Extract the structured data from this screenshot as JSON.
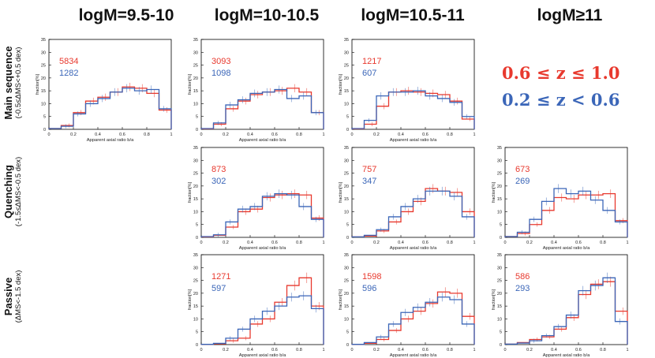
{
  "columns": [
    "logM=9.5-10",
    "logM=10-10.5",
    "logM=10.5-11",
    "logM≥11"
  ],
  "rows": [
    {
      "title": "Main sequence",
      "subtitle": "(-0.5≤ΔMS<+0.5 dex)"
    },
    {
      "title": "Quenching",
      "subtitle": "(-1.5≤ΔMS<-0.5 dex)"
    },
    {
      "title": "Passive",
      "subtitle": "(ΔMS<-1.5 dex)"
    }
  ],
  "legend": {
    "red": {
      "label": "0.6 ≤ z ≤ 1.0",
      "color": "#e8392e"
    },
    "blue": {
      "label": "0.2 ≤ z < 0.6",
      "color": "#3b66b8"
    }
  },
  "colors": {
    "red": "#e8392e",
    "blue": "#3b66b8"
  },
  "chart_data": [
    {
      "type": "bar",
      "row": "Main sequence",
      "column": "logM=9.5-10",
      "xlabel": "Apparent axial ratio b/a",
      "ylabel": "fraction[%]",
      "xlim": [
        0,
        1
      ],
      "ylim": [
        0,
        35
      ],
      "xticks": [
        "0",
        "0.2",
        "0.4",
        "0.6",
        "0.8",
        "1"
      ],
      "yticks": [
        "0",
        "5",
        "10",
        "15",
        "20",
        "25",
        "30",
        "35"
      ],
      "bin_edges": [
        0,
        0.1,
        0.2,
        0.3,
        0.4,
        0.5,
        0.6,
        0.7,
        0.8,
        0.9,
        1.0
      ],
      "series": [
        {
          "name": "0.6 ≤ z ≤ 1.0",
          "count": "5834",
          "values": [
            0.3,
            1.5,
            6.5,
            11,
            12.5,
            14.5,
            16.5,
            16,
            14,
            7.5
          ]
        },
        {
          "name": "0.2 ≤ z < 0.6",
          "count": "1282",
          "values": [
            0.3,
            1.2,
            6,
            10,
            12,
            14.5,
            16,
            15,
            15.5,
            8
          ]
        }
      ]
    },
    {
      "type": "bar",
      "row": "Main sequence",
      "column": "logM=10-10.5",
      "xlabel": "Apparent axial ratio b/a",
      "ylabel": "fraction[%]",
      "xlim": [
        0,
        1
      ],
      "ylim": [
        0,
        35
      ],
      "xticks": [
        "0",
        "0.2",
        "0.4",
        "0.6",
        "0.8",
        "1"
      ],
      "yticks": [
        "0",
        "5",
        "10",
        "15",
        "20",
        "25",
        "30",
        "35"
      ],
      "bin_edges": [
        0,
        0.1,
        0.2,
        0.3,
        0.4,
        0.5,
        0.6,
        0.7,
        0.8,
        0.9,
        1.0
      ],
      "series": [
        {
          "name": "0.6 ≤ z ≤ 1.0",
          "count": "3093",
          "values": [
            0.2,
            2,
            8,
            11,
            13.5,
            14.5,
            15,
            16,
            14.5,
            6.5
          ]
        },
        {
          "name": "0.2 ≤ z < 0.6",
          "count": "1098",
          "values": [
            0.3,
            2.5,
            9.5,
            11.5,
            14,
            14.5,
            15.5,
            12,
            13,
            6.5
          ]
        }
      ]
    },
    {
      "type": "bar",
      "row": "Main sequence",
      "column": "logM=10.5-11",
      "xlabel": "Apparent axial ratio b/a",
      "ylabel": "fraction[%]",
      "xlim": [
        0,
        1
      ],
      "ylim": [
        0,
        35
      ],
      "xticks": [
        "0",
        "0.2",
        "0.4",
        "0.6",
        "0.8",
        "1"
      ],
      "yticks": [
        "0",
        "5",
        "10",
        "15",
        "20",
        "25",
        "30",
        "35"
      ],
      "bin_edges": [
        0,
        0.1,
        0.2,
        0.3,
        0.4,
        0.5,
        0.6,
        0.7,
        0.8,
        0.9,
        1.0
      ],
      "series": [
        {
          "name": "0.6 ≤ z ≤ 1.0",
          "count": "1217",
          "values": [
            0.2,
            2,
            9,
            14.5,
            15,
            14.5,
            14,
            13.5,
            11,
            4
          ]
        },
        {
          "name": "0.2 ≤ z < 0.6",
          "count": "607",
          "values": [
            0.3,
            3.5,
            13,
            14.5,
            14.5,
            15,
            13,
            12,
            10.5,
            5
          ]
        }
      ]
    },
    {
      "type": "bar",
      "row": "Quenching",
      "column": "logM=10-10.5",
      "xlabel": "Apparent axial ratio b/a",
      "ylabel": "fraction[%]",
      "xlim": [
        0,
        1
      ],
      "ylim": [
        0,
        35
      ],
      "xticks": [
        "0",
        "0.2",
        "0.4",
        "0.6",
        "0.8",
        "1"
      ],
      "yticks": [
        "0",
        "5",
        "10",
        "15",
        "20",
        "25",
        "30",
        "35"
      ],
      "bin_edges": [
        0,
        0.1,
        0.2,
        0.3,
        0.4,
        0.5,
        0.6,
        0.7,
        0.8,
        0.9,
        1.0
      ],
      "series": [
        {
          "name": "0.6 ≤ z ≤ 1.0",
          "count": "873",
          "values": [
            0.2,
            0.8,
            4,
            10,
            11,
            15.5,
            16.5,
            17,
            16.5,
            7.5
          ]
        },
        {
          "name": "0.2 ≤ z < 0.6",
          "count": "302",
          "values": [
            0.3,
            1,
            6,
            11,
            12,
            16,
            17,
            16.5,
            12,
            7
          ]
        }
      ]
    },
    {
      "type": "bar",
      "row": "Quenching",
      "column": "logM=10.5-11",
      "xlabel": "Apparent axial ratio b/a",
      "ylabel": "fraction[%]",
      "xlim": [
        0,
        1
      ],
      "ylim": [
        0,
        35
      ],
      "xticks": [
        "0",
        "0.2",
        "0.4",
        "0.6",
        "0.8",
        "1"
      ],
      "yticks": [
        "0",
        "5",
        "10",
        "15",
        "20",
        "25",
        "30",
        "35"
      ],
      "bin_edges": [
        0,
        0.1,
        0.2,
        0.3,
        0.4,
        0.5,
        0.6,
        0.7,
        0.8,
        0.9,
        1.0
      ],
      "series": [
        {
          "name": "0.6 ≤ z ≤ 1.0",
          "count": "757",
          "values": [
            0.2,
            0.5,
            2.5,
            6,
            10,
            14,
            19,
            18,
            17.5,
            10
          ]
        },
        {
          "name": "0.2 ≤ z < 0.6",
          "count": "347",
          "values": [
            0.2,
            0.8,
            3,
            8,
            12,
            15,
            18,
            18,
            16,
            8
          ]
        }
      ]
    },
    {
      "type": "bar",
      "row": "Quenching",
      "column": "logM≥11",
      "xlabel": "Apparent axial ratio b/a",
      "ylabel": "fraction[%]",
      "xlim": [
        0,
        1
      ],
      "ylim": [
        0,
        35
      ],
      "xticks": [
        "0",
        "0.2",
        "0.4",
        "0.6",
        "0.8",
        "1"
      ],
      "yticks": [
        "0",
        "5",
        "10",
        "15",
        "20",
        "25",
        "30",
        "35"
      ],
      "bin_edges": [
        0,
        0.1,
        0.2,
        0.3,
        0.4,
        0.5,
        0.6,
        0.7,
        0.8,
        0.9,
        1.0
      ],
      "series": [
        {
          "name": "0.6 ≤ z ≤ 1.0",
          "count": "673",
          "values": [
            0.3,
            1.5,
            5,
            10.5,
            15.5,
            15,
            16.5,
            16.5,
            17,
            6.5
          ]
        },
        {
          "name": "0.2 ≤ z < 0.6",
          "count": "269",
          "values": [
            0.3,
            2,
            7,
            14,
            19,
            17,
            18,
            14.5,
            10.5,
            6
          ]
        }
      ]
    },
    {
      "type": "bar",
      "row": "Passive",
      "column": "logM=10-10.5",
      "xlabel": "Apparent axial ratio b/a",
      "ylabel": "fraction[%]",
      "xlim": [
        0,
        1
      ],
      "ylim": [
        0,
        35
      ],
      "xticks": [
        "0",
        "0.2",
        "0.4",
        "0.6",
        "0.8",
        "1"
      ],
      "yticks": [
        "0",
        "5",
        "10",
        "15",
        "20",
        "25",
        "30",
        "35"
      ],
      "bin_edges": [
        0,
        0.1,
        0.2,
        0.3,
        0.4,
        0.5,
        0.6,
        0.7,
        0.8,
        0.9,
        1.0
      ],
      "series": [
        {
          "name": "0.6 ≤ z ≤ 1.0",
          "count": "1271",
          "values": [
            0.1,
            0.3,
            1.5,
            2.5,
            8,
            10,
            16.5,
            23,
            26,
            15
          ]
        },
        {
          "name": "0.2 ≤ z < 0.6",
          "count": "597",
          "values": [
            0.1,
            0.5,
            2.5,
            6,
            10,
            13,
            15,
            18.5,
            19,
            14
          ]
        }
      ]
    },
    {
      "type": "bar",
      "row": "Passive",
      "column": "logM=10.5-11",
      "xlabel": "Apparent axial ratio b/a",
      "ylabel": "fraction[%]",
      "xlim": [
        0,
        1
      ],
      "ylim": [
        0,
        35
      ],
      "xticks": [
        "0",
        "0.2",
        "0.4",
        "0.6",
        "0.8",
        "1"
      ],
      "yticks": [
        "0",
        "5",
        "10",
        "15",
        "20",
        "25",
        "30",
        "35"
      ],
      "bin_edges": [
        0,
        0.1,
        0.2,
        0.3,
        0.4,
        0.5,
        0.6,
        0.7,
        0.8,
        0.9,
        1.0
      ],
      "series": [
        {
          "name": "0.6 ≤ z ≤ 1.0",
          "count": "1598",
          "values": [
            0.1,
            0.5,
            2,
            5.5,
            10,
            13,
            16,
            20.5,
            20,
            11
          ]
        },
        {
          "name": "0.2 ≤ z < 0.6",
          "count": "596",
          "values": [
            0.1,
            0.8,
            3,
            8,
            12.5,
            14.5,
            16.5,
            18.5,
            17.5,
            8
          ]
        }
      ]
    },
    {
      "type": "bar",
      "row": "Passive",
      "column": "logM≥11",
      "xlabel": "Apparent axial ratio b/a",
      "ylabel": "fraction[%]",
      "xlim": [
        0,
        1
      ],
      "ylim": [
        0,
        35
      ],
      "xticks": [
        "0",
        "0.2",
        "0.4",
        "0.6",
        "0.8",
        "1"
      ],
      "yticks": [
        "0",
        "5",
        "10",
        "15",
        "20",
        "25",
        "30",
        "35"
      ],
      "bin_edges": [
        0,
        0.1,
        0.2,
        0.3,
        0.4,
        0.5,
        0.6,
        0.7,
        0.8,
        0.9,
        1.0
      ],
      "series": [
        {
          "name": "0.6 ≤ z ≤ 1.0",
          "count": "586",
          "values": [
            0.2,
            0.8,
            2,
            3,
            6,
            10.5,
            19.5,
            23.5,
            24.5,
            13
          ]
        },
        {
          "name": "0.2 ≤ z < 0.6",
          "count": "293",
          "values": [
            0.2,
            0.6,
            1.5,
            3.5,
            7,
            11.5,
            21,
            23,
            26,
            9
          ]
        }
      ]
    }
  ]
}
